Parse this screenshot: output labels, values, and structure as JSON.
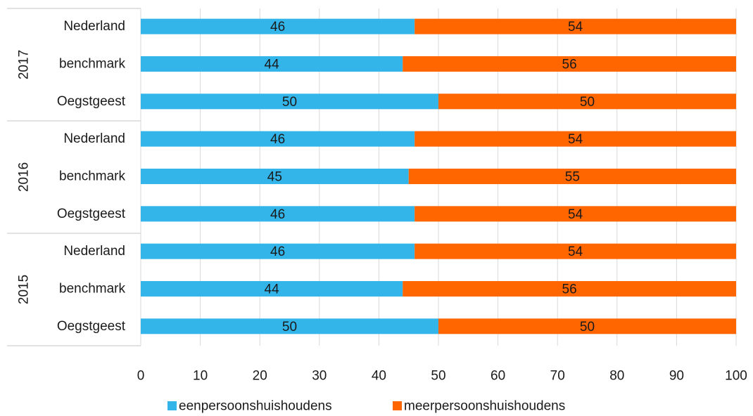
{
  "chart_data": {
    "type": "bar",
    "orientation": "horizontal",
    "stacked": true,
    "groups": [
      {
        "label": "2017",
        "categories": [
          {
            "label": "Nederland",
            "values": [
              46,
              54
            ]
          },
          {
            "label": "benchmark",
            "values": [
              44,
              56
            ]
          },
          {
            "label": "Oegstgeest",
            "values": [
              50,
              50
            ]
          }
        ]
      },
      {
        "label": "2016",
        "categories": [
          {
            "label": "Nederland",
            "values": [
              46,
              54
            ]
          },
          {
            "label": "benchmark",
            "values": [
              45,
              55
            ]
          },
          {
            "label": "Oegstgeest",
            "values": [
              46,
              54
            ]
          }
        ]
      },
      {
        "label": "2015",
        "categories": [
          {
            "label": "Nederland",
            "values": [
              46,
              54
            ]
          },
          {
            "label": "benchmark",
            "values": [
              44,
              56
            ]
          },
          {
            "label": "Oegstgeest",
            "values": [
              50,
              50
            ]
          }
        ]
      }
    ],
    "series": [
      {
        "name": "eenpersoonshuishoudens",
        "color": "#33b5ea"
      },
      {
        "name": "meerpersoonshuishoudens",
        "color": "#ff6600"
      }
    ],
    "xlim": [
      0,
      100
    ],
    "xticks": [
      "0",
      "10",
      "20",
      "30",
      "40",
      "50",
      "60",
      "70",
      "80",
      "90",
      "100"
    ],
    "grid": true,
    "legend_position": "bottom"
  }
}
